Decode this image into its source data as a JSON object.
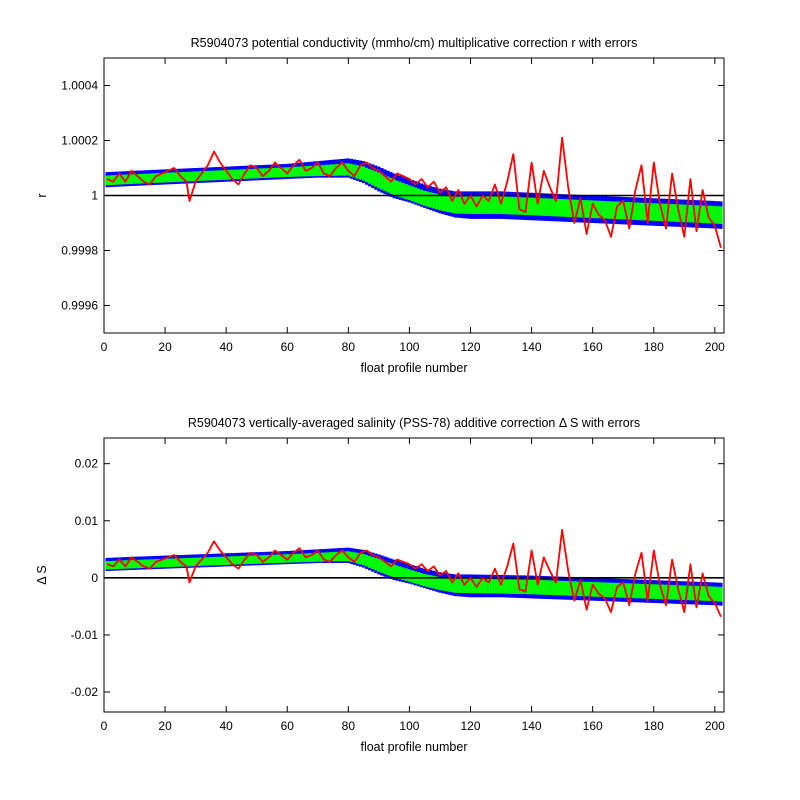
{
  "chart_data": [
    {
      "type": "line",
      "title": "R5904073 potential conductivity (mmho/cm) multiplicative correction r with errors",
      "xlabel": "float profile number",
      "ylabel": "r",
      "xlim": [
        0,
        203
      ],
      "ylim": [
        0.9995,
        1.0005
      ],
      "xticks": [
        0,
        20,
        40,
        60,
        80,
        100,
        120,
        140,
        160,
        180,
        200
      ],
      "yticks": [
        0.9996,
        0.9998,
        1,
        1.0002,
        1.0004
      ],
      "ytick_labels": [
        "0.9996",
        "0.9998",
        "1",
        "1.0002",
        "1.0004"
      ],
      "reference_line": 1,
      "error_envelope": {
        "outer_color": "#0000ff",
        "inner_color": "#00ff00",
        "x": [
          1,
          10,
          20,
          30,
          40,
          50,
          60,
          70,
          80,
          85,
          90,
          95,
          100,
          105,
          110,
          115,
          120,
          130,
          140,
          150,
          160,
          170,
          180,
          190,
          200,
          203
        ],
        "upper": [
          1.000085,
          1.00009,
          1.000095,
          1.0001,
          1.000105,
          1.00011,
          1.000115,
          1.000125,
          1.000135,
          1.000125,
          1.000105,
          1.00008,
          1.00006,
          1.00004,
          1.000025,
          1.000015,
          1.000015,
          1.000015,
          1.00001,
          1.000005,
          1.0,
          0.999995,
          0.99999,
          0.999985,
          0.99998,
          0.999978
        ],
        "center": [
          1.000055,
          1.00006,
          1.000065,
          1.00007,
          1.000075,
          1.00008,
          1.000085,
          1.00009,
          1.000095,
          1.00008,
          1.000055,
          1.00003,
          1.00001,
          0.99999,
          0.999975,
          0.999965,
          0.999965,
          0.999965,
          0.99996,
          0.999955,
          0.99995,
          0.999945,
          0.99994,
          0.999935,
          0.99993,
          0.999928
        ],
        "lower": [
          1.00003,
          1.000035,
          1.00004,
          1.000045,
          1.00005,
          1.000055,
          1.00006,
          1.000065,
          1.000065,
          1.000045,
          1.000015,
          0.99999,
          0.999975,
          0.999955,
          0.999935,
          0.99992,
          0.999915,
          0.999915,
          0.99991,
          0.999905,
          0.9999,
          0.999895,
          0.99989,
          0.999885,
          0.99988,
          0.999878
        ]
      },
      "series": [
        {
          "color": "#ff0000",
          "x": [
            1,
            3,
            5,
            7,
            9,
            11,
            13,
            15,
            17,
            19,
            21,
            23,
            25,
            27,
            28,
            30,
            32,
            34,
            36,
            38,
            40,
            42,
            44,
            46,
            48,
            50,
            52,
            54,
            56,
            58,
            60,
            62,
            64,
            66,
            68,
            70,
            72,
            74,
            76,
            78,
            80,
            82,
            84,
            86,
            88,
            90,
            92,
            94,
            96,
            98,
            100,
            102,
            104,
            106,
            108,
            110,
            112,
            114,
            116,
            118,
            120,
            122,
            124,
            126,
            128,
            130,
            132,
            134,
            136,
            138,
            140,
            142,
            144,
            146,
            148,
            150,
            152,
            154,
            156,
            158,
            160,
            162,
            164,
            166,
            168,
            170,
            172,
            174,
            176,
            178,
            180,
            182,
            184,
            186,
            188,
            190,
            192,
            194,
            196,
            198,
            200,
            202
          ],
          "y": [
            1.00006,
            1.00005,
            1.00008,
            1.00005,
            1.00009,
            1.00007,
            1.00005,
            1.00004,
            1.00007,
            1.00008,
            1.00009,
            1.0001,
            1.00007,
            1.00005,
            0.99998,
            1.00005,
            1.00008,
            1.00011,
            1.00016,
            1.00012,
            1.00009,
            1.00006,
            1.00004,
            1.00008,
            1.00011,
            1.0001,
            1.00007,
            1.00009,
            1.00012,
            1.0001,
            1.00008,
            1.00011,
            1.00013,
            1.00009,
            1.0001,
            1.00012,
            1.00008,
            1.00007,
            1.0001,
            1.00012,
            1.00009,
            1.00007,
            1.00011,
            1.00012,
            1.0001,
            1.00009,
            1.00007,
            1.00005,
            1.00008,
            1.00007,
            1.00006,
            1.00004,
            1.00006,
            1.00003,
            1.00005,
            1.00001,
            1.00003,
            0.99998,
            1.00002,
            0.99997,
            1.0,
            0.99996,
            1.0,
            0.99998,
            1.00004,
            0.99997,
            1.00005,
            1.00015,
            0.99995,
            0.99994,
            1.00012,
            0.99997,
            1.00009,
            1.00003,
            0.99998,
            1.00021,
            1.00003,
            0.9999,
            0.99999,
            0.99986,
            0.99997,
            0.99993,
            0.99991,
            0.99985,
            0.99996,
            0.99998,
            0.99988,
            1.00002,
            1.00011,
            0.9999,
            1.00012,
            0.99997,
            0.99988,
            1.00008,
            0.99995,
            0.99985,
            1.00006,
            0.99987,
            1.00002,
            0.99992,
            0.99989,
            0.99981
          ]
        }
      ],
      "grid": false
    },
    {
      "type": "line",
      "title": "R5904073 vertically-averaged salinity (PSS-78) additive correction Δ S with errors",
      "xlabel": "float profile number",
      "ylabel": "Δ S",
      "xlim": [
        0,
        203
      ],
      "ylim": [
        -0.0235,
        0.0245
      ],
      "xticks": [
        0,
        20,
        40,
        60,
        80,
        100,
        120,
        140,
        160,
        180,
        200
      ],
      "yticks": [
        -0.02,
        -0.01,
        0,
        0.01,
        0.02
      ],
      "ytick_labels": [
        "-0.02",
        "-0.01",
        "0",
        "0.01",
        "0.02"
      ],
      "reference_line": 0,
      "error_envelope": {
        "outer_color": "#0000ff",
        "inner_color": "#00ff00",
        "x": [
          1,
          10,
          20,
          30,
          40,
          50,
          60,
          70,
          80,
          85,
          90,
          95,
          100,
          105,
          110,
          115,
          120,
          130,
          140,
          150,
          160,
          170,
          180,
          190,
          200,
          203
        ],
        "upper": [
          0.0035,
          0.0037,
          0.0039,
          0.0041,
          0.0043,
          0.0045,
          0.0047,
          0.005,
          0.0053,
          0.0049,
          0.0041,
          0.0032,
          0.0024,
          0.0016,
          0.001,
          0.0006,
          0.0006,
          0.0005,
          0.0004,
          0.0002,
          0.0,
          -0.0002,
          -0.0004,
          -0.0006,
          -0.0008,
          -0.0009
        ],
        "center": [
          0.0022,
          0.0024,
          0.0026,
          0.0028,
          0.003,
          0.0032,
          0.0034,
          0.0036,
          0.0038,
          0.0032,
          0.0022,
          0.0012,
          0.0004,
          -0.0004,
          -0.001,
          -0.0014,
          -0.0014,
          -0.0015,
          -0.0016,
          -0.0018,
          -0.002,
          -0.0022,
          -0.0024,
          -0.0026,
          -0.0028,
          -0.0029
        ],
        "lower": [
          0.0012,
          0.0014,
          0.0016,
          0.0018,
          0.002,
          0.0022,
          0.0024,
          0.0026,
          0.0026,
          0.0018,
          0.0006,
          -0.0004,
          -0.001,
          -0.0018,
          -0.0026,
          -0.0032,
          -0.0034,
          -0.0034,
          -0.0036,
          -0.0038,
          -0.004,
          -0.0042,
          -0.0044,
          -0.0046,
          -0.0048,
          -0.0049
        ]
      },
      "series": [
        {
          "color": "#ff0000",
          "x": [
            1,
            3,
            5,
            7,
            9,
            11,
            13,
            15,
            17,
            19,
            21,
            23,
            25,
            27,
            28,
            30,
            32,
            34,
            36,
            38,
            40,
            42,
            44,
            46,
            48,
            50,
            52,
            54,
            56,
            58,
            60,
            62,
            64,
            66,
            68,
            70,
            72,
            74,
            76,
            78,
            80,
            82,
            84,
            86,
            88,
            90,
            92,
            94,
            96,
            98,
            100,
            102,
            104,
            106,
            108,
            110,
            112,
            114,
            116,
            118,
            120,
            122,
            124,
            126,
            128,
            130,
            132,
            134,
            136,
            138,
            140,
            142,
            144,
            146,
            148,
            150,
            152,
            154,
            156,
            158,
            160,
            162,
            164,
            166,
            168,
            170,
            172,
            174,
            176,
            178,
            180,
            182,
            184,
            186,
            188,
            190,
            192,
            194,
            196,
            198,
            200,
            202
          ],
          "y": [
            0.0024,
            0.002,
            0.0032,
            0.002,
            0.0036,
            0.0028,
            0.002,
            0.0016,
            0.0028,
            0.0032,
            0.0036,
            0.004,
            0.0028,
            0.002,
            -0.0008,
            0.002,
            0.0032,
            0.0044,
            0.0064,
            0.0048,
            0.0036,
            0.0024,
            0.0016,
            0.0032,
            0.0044,
            0.004,
            0.0028,
            0.0036,
            0.0048,
            0.004,
            0.0032,
            0.0044,
            0.0052,
            0.0036,
            0.004,
            0.0048,
            0.0032,
            0.0028,
            0.004,
            0.0048,
            0.0036,
            0.0028,
            0.0044,
            0.0048,
            0.004,
            0.0036,
            0.0028,
            0.002,
            0.0032,
            0.0028,
            0.0024,
            0.0016,
            0.0024,
            0.0012,
            0.002,
            0.0004,
            0.0012,
            -0.0008,
            0.0008,
            -0.0012,
            0.0,
            -0.0016,
            0.0,
            -0.0008,
            0.0016,
            -0.0012,
            0.002,
            0.006,
            -0.002,
            -0.0024,
            0.0048,
            -0.0012,
            0.0036,
            0.0012,
            -0.0008,
            0.0084,
            0.0012,
            -0.004,
            -0.0004,
            -0.0056,
            -0.0012,
            -0.0028,
            -0.0036,
            -0.006,
            -0.0016,
            -0.0008,
            -0.0048,
            0.0008,
            0.0044,
            -0.004,
            0.0048,
            -0.0012,
            -0.0048,
            0.0032,
            -0.002,
            -0.006,
            0.0024,
            -0.0052,
            0.0008,
            -0.0032,
            -0.0044,
            -0.0068
          ]
        }
      ],
      "grid": false
    }
  ]
}
